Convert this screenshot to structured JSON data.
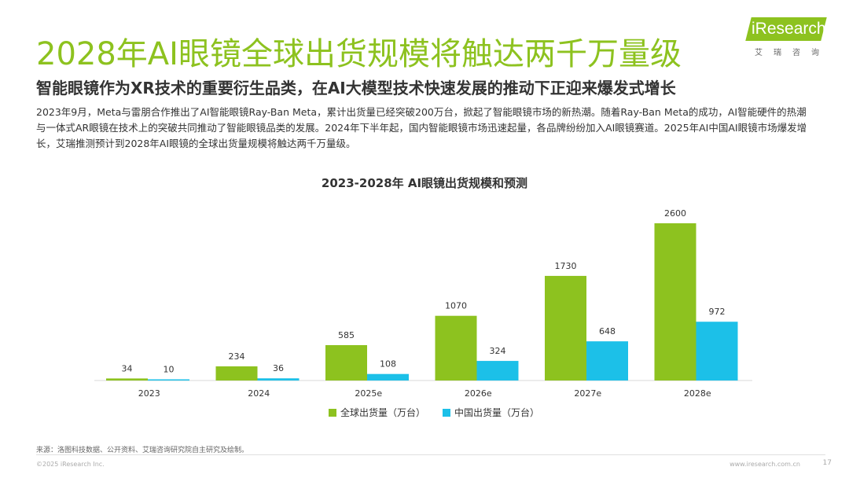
{
  "header": {
    "title": "2028年AI眼镜全球出货规模将触达两千万量级",
    "subtitle": "智能眼镜作为XR技术的重要衍生品类，在AI大模型技术快速发展的推动下正迎来爆发式增长",
    "body": "2023年9月，Meta与雷朋合作推出了AI智能眼镜Ray-Ban Meta，累计出货量已经突破200万台，掀起了智能眼镜市场的新热潮。随着Ray-Ban Meta的成功，AI智能硬件的热潮与一体式AR眼镜在技术上的突破共同推动了智能眼镜品类的发展。2024年下半年起，国内智能眼镜市场迅速起量，各品牌纷纷加入AI眼镜赛道。2025年AI中国AI眼镜市场爆发增长，艾瑞推测预计到2028年AI眼镜的全球出货量规模将触达两千万量级。"
  },
  "logo": {
    "text": "iResearch",
    "sub": "艾瑞咨询"
  },
  "colors": {
    "accent": "#8dc21f",
    "china": "#1cc0e8"
  },
  "chart_data": {
    "type": "bar",
    "title": "2023-2028年 AI眼镜出货规模和预测",
    "categories": [
      "2023",
      "2024",
      "2025e",
      "2026e",
      "2027e",
      "2028e"
    ],
    "series": [
      {
        "name": "全球出货量（万台）",
        "values": [
          34,
          234,
          585,
          1070,
          1730,
          2600
        ],
        "color": "#8dc21f"
      },
      {
        "name": "中国出货量（万台）",
        "values": [
          10,
          36,
          108,
          324,
          648,
          972
        ],
        "color": "#1cc0e8"
      }
    ],
    "ylim": [
      0,
      2600
    ],
    "grid": false,
    "legend": "bottom"
  },
  "footer": {
    "source": "来源：洛图科技数据、公开资料、艾瑞咨询研究院自主研究及绘制。",
    "copyright": "©2025 iResearch Inc.",
    "website": "www.iresearch.com.cn",
    "page": "17"
  }
}
